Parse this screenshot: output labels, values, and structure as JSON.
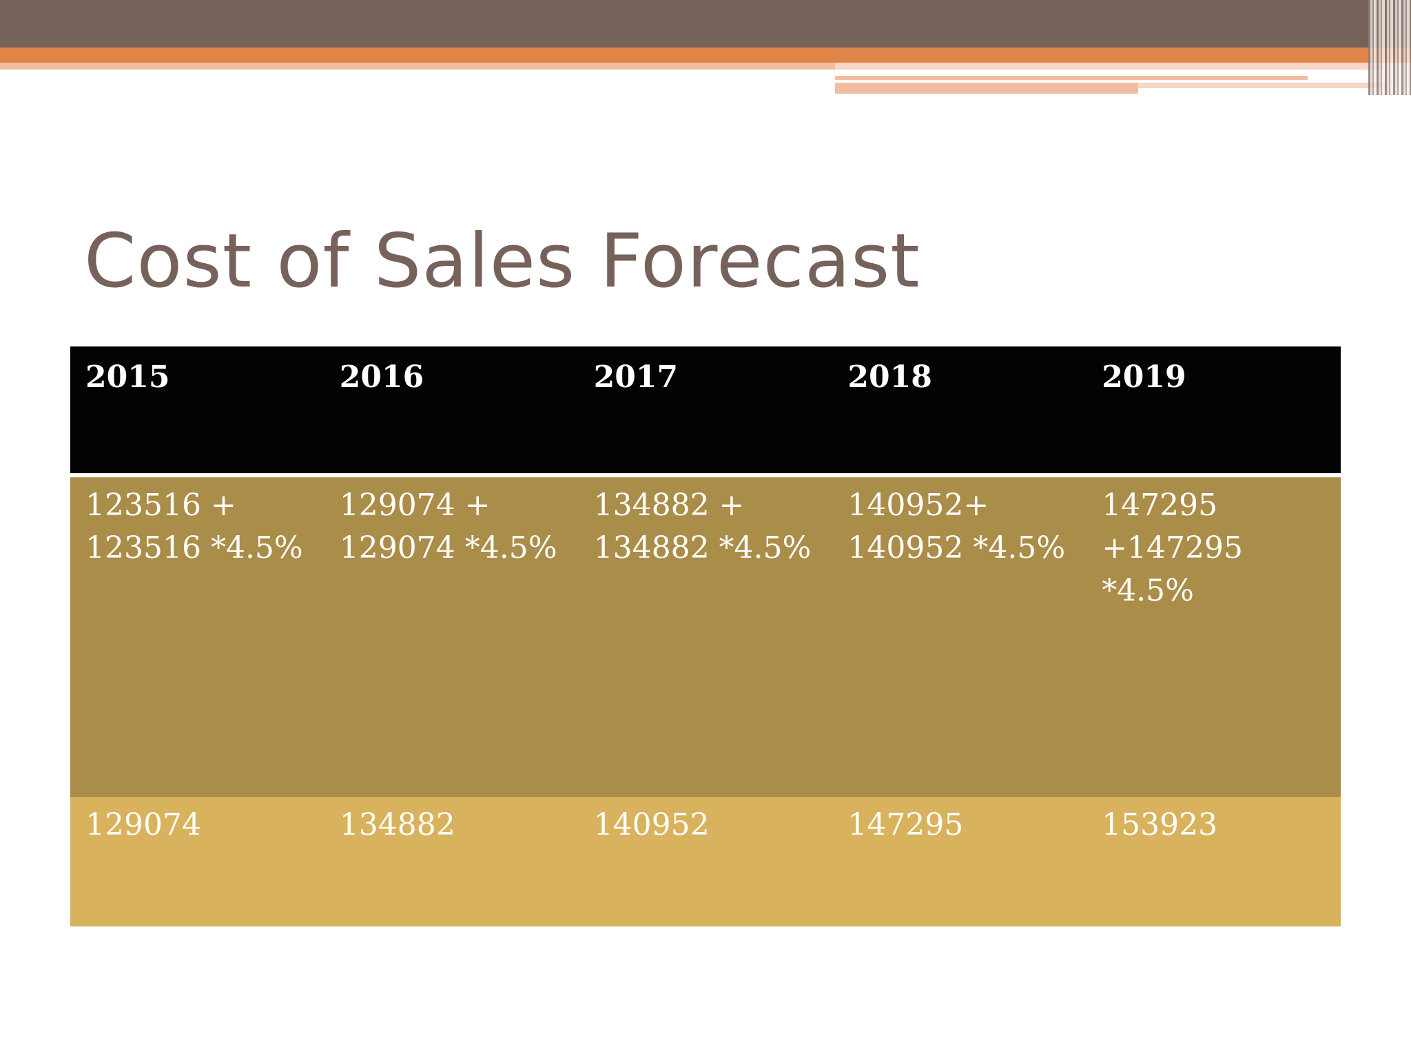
{
  "slide": {
    "title": "Cost of Sales Forecast"
  },
  "colors": {
    "title": "#76625a",
    "band_brown": "#76625a",
    "band_orange": "#e08548",
    "band_peach": "#f1bda0",
    "header_row": "#030204",
    "formula_row": "#ab8d4a",
    "result_row": "#d8b25d",
    "cell_text": "#ffffff"
  },
  "table": {
    "headers": [
      "2015",
      "2016",
      "2017",
      "2018",
      "2019"
    ],
    "formulas": [
      [
        "123516 +",
        "123516 *4.5%"
      ],
      [
        "129074 +",
        "129074 *4.5%"
      ],
      [
        "134882 +",
        "134882 *4.5%"
      ],
      [
        "140952+",
        "140952 *4.5%"
      ],
      [
        "147295",
        "+147295",
        "*4.5%"
      ]
    ],
    "results": [
      "129074",
      "134882",
      "140952",
      "147295",
      "153923"
    ]
  }
}
